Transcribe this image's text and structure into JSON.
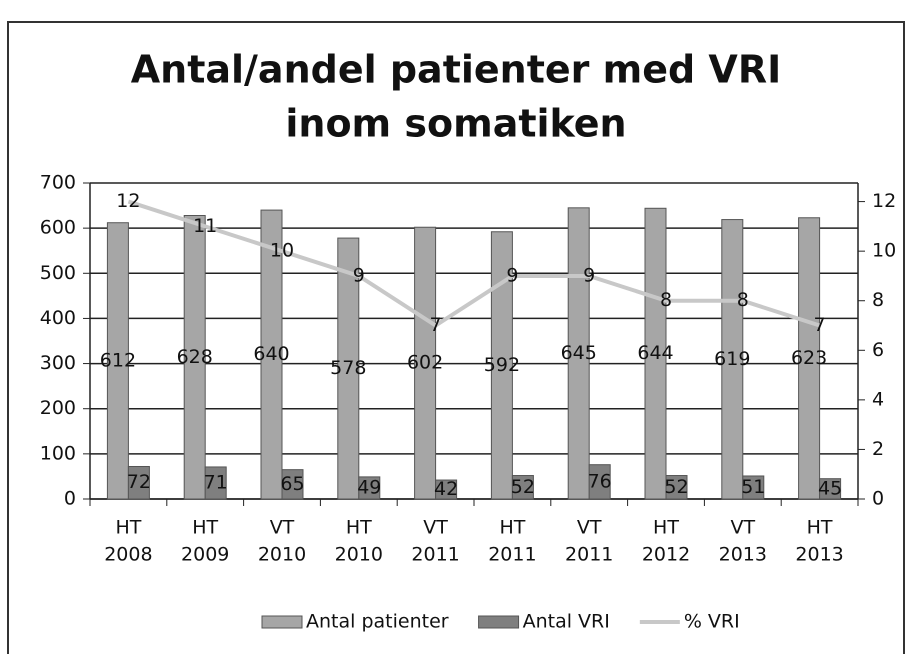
{
  "chart_data": {
    "type": "bar",
    "title": [
      "Antal/andel patienter med VRI",
      "inom somatiken"
    ],
    "categories": [
      [
        "HT",
        "2008"
      ],
      [
        "HT",
        "2009"
      ],
      [
        "VT",
        "2010"
      ],
      [
        "HT",
        "2010"
      ],
      [
        "VT",
        "2011"
      ],
      [
        "HT",
        "2011"
      ],
      [
        "VT",
        "2011"
      ],
      [
        "HT",
        "2012"
      ],
      [
        "VT",
        "2013"
      ],
      [
        "HT",
        "2013"
      ]
    ],
    "series": [
      {
        "name": "Antal patienter",
        "color": "#a6a6a6",
        "values": [
          612,
          628,
          640,
          578,
          602,
          592,
          645,
          644,
          619,
          623
        ]
      },
      {
        "name": "Antal VRI",
        "color": "#7f7f7f",
        "values": [
          72,
          71,
          65,
          49,
          42,
          52,
          76,
          52,
          51,
          45
        ]
      },
      {
        "name": "% VRI",
        "color": "#c8c8c8",
        "axis": "y2",
        "type": "line",
        "values": [
          12,
          11,
          10,
          9,
          7,
          9,
          9,
          8,
          8,
          7
        ]
      }
    ],
    "ylim": [
      0,
      700
    ],
    "yticks": [
      0,
      100,
      200,
      300,
      400,
      500,
      600,
      700
    ],
    "y2lim": [
      0,
      12.75
    ],
    "y2ticks": [
      0,
      2,
      4,
      6,
      8,
      10,
      12
    ],
    "grid": true,
    "legend": "bottom"
  }
}
